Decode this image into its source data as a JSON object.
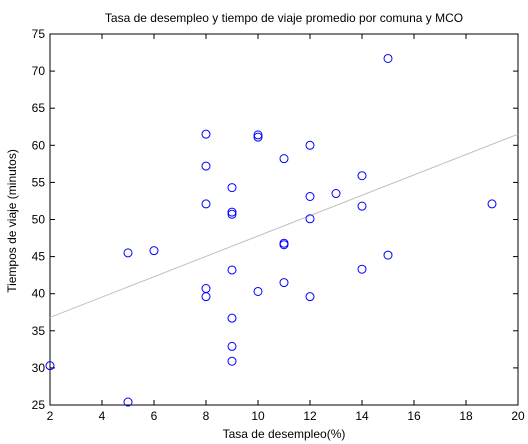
{
  "chart_data": {
    "type": "scatter",
    "title": "Tasa de desempleo y tiempo de viaje promedio por comuna y MCO",
    "xlabel": "Tasa de desempleo(%)",
    "ylabel": "Tiempos de viaje (minutos)",
    "xlim": [
      2,
      20
    ],
    "ylim": [
      25,
      75
    ],
    "xticks": [
      2,
      4,
      6,
      8,
      10,
      12,
      14,
      16,
      18,
      20
    ],
    "yticks": [
      25,
      30,
      35,
      40,
      45,
      50,
      55,
      60,
      65,
      70,
      75
    ],
    "grid": false,
    "marker": "circle-open",
    "colors": {
      "points": "#0000ff",
      "fit_line": "#c0c0c0",
      "axes": "#000000"
    },
    "series": [
      {
        "points": [
          [
            2,
            30.3
          ],
          [
            5,
            45.5
          ],
          [
            5,
            25.4
          ],
          [
            6,
            45.8
          ],
          [
            8,
            61.5
          ],
          [
            8,
            57.2
          ],
          [
            8,
            52.1
          ],
          [
            8,
            40.7
          ],
          [
            8,
            39.6
          ],
          [
            9,
            54.3
          ],
          [
            9,
            51.0
          ],
          [
            9,
            50.7
          ],
          [
            9,
            43.2
          ],
          [
            9,
            36.7
          ],
          [
            9,
            32.9
          ],
          [
            9,
            30.9
          ],
          [
            10,
            61.4
          ],
          [
            10,
            61.1
          ],
          [
            10,
            40.3
          ],
          [
            11,
            58.2
          ],
          [
            11,
            46.8
          ],
          [
            11,
            46.6
          ],
          [
            11,
            41.5
          ],
          [
            12,
            60.0
          ],
          [
            12,
            53.1
          ],
          [
            12,
            50.1
          ],
          [
            12,
            39.6
          ],
          [
            13,
            53.5
          ],
          [
            14,
            55.9
          ],
          [
            14,
            51.8
          ],
          [
            14,
            43.3
          ],
          [
            15,
            71.7
          ],
          [
            15,
            45.2
          ],
          [
            19,
            52.1
          ]
        ]
      },
      {
        "kind": "fit-line",
        "points": [
          [
            2,
            36.8
          ],
          [
            20,
            61.5
          ]
        ]
      }
    ]
  }
}
